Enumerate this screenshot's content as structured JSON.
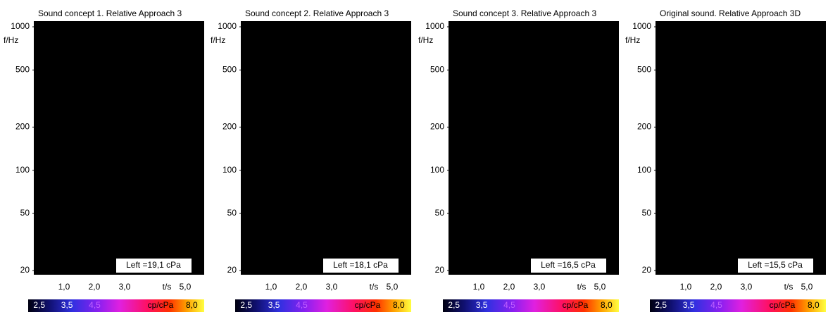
{
  "chart_data": [
    {
      "type": "spectrogram",
      "title": "Sound concept 1. Relative Approach 3",
      "ylabel": "f/Hz",
      "xlabel": "t/s",
      "log_y": true,
      "ylim": [
        18.7,
        1095
      ],
      "yticks": [
        20,
        50,
        100,
        200,
        500,
        1000
      ],
      "xlim": [
        0,
        5.63
      ],
      "xticks": [
        {
          "value": 1,
          "label": "1,0"
        },
        {
          "value": 2,
          "label": "2,0"
        },
        {
          "value": 3,
          "label": "3,0"
        },
        {
          "value": 5,
          "label": "5,0"
        }
      ],
      "annotation": "Left =19,1 cPa",
      "colorbar_label": "cp/cPa",
      "clim": [
        2.1,
        8.45
      ],
      "cticks": [
        {
          "value": 2.5,
          "label": "2,5"
        },
        {
          "value": 3.5,
          "label": "3,5"
        },
        {
          "value": 4.5,
          "label": "4,5"
        },
        {
          "value": 8,
          "label": "8,0"
        }
      ]
    },
    {
      "type": "spectrogram",
      "title": "Sound concept 2. Relative Approach 3",
      "ylabel": "f/Hz",
      "xlabel": "t/s",
      "log_y": true,
      "ylim": [
        18.7,
        1095
      ],
      "yticks": [
        20,
        50,
        100,
        200,
        500,
        1000
      ],
      "xlim": [
        0,
        5.63
      ],
      "xticks": [
        {
          "value": 1,
          "label": "1,0"
        },
        {
          "value": 2,
          "label": "2,0"
        },
        {
          "value": 3,
          "label": "3,0"
        },
        {
          "value": 5,
          "label": "5,0"
        }
      ],
      "annotation": "Left =18,1 cPa",
      "colorbar_label": "cp/cPa",
      "clim": [
        2.1,
        8.45
      ],
      "cticks": [
        {
          "value": 2.5,
          "label": "2,5"
        },
        {
          "value": 3.5,
          "label": "3,5"
        },
        {
          "value": 4.5,
          "label": "4,5"
        },
        {
          "value": 8,
          "label": "8,0"
        }
      ]
    },
    {
      "type": "spectrogram",
      "title": "Sound concept 3. Relative Approach 3",
      "ylabel": "f/Hz",
      "xlabel": "t/s",
      "log_y": true,
      "ylim": [
        18.7,
        1095
      ],
      "yticks": [
        20,
        50,
        100,
        200,
        500,
        1000
      ],
      "xlim": [
        0,
        5.63
      ],
      "xticks": [
        {
          "value": 1,
          "label": "1,0"
        },
        {
          "value": 2,
          "label": "2,0"
        },
        {
          "value": 3,
          "label": "3,0"
        },
        {
          "value": 5,
          "label": "5,0"
        }
      ],
      "annotation": "Left =16,5 cPa",
      "colorbar_label": "cp/cPa",
      "clim": [
        2.1,
        8.45
      ],
      "cticks": [
        {
          "value": 2.5,
          "label": "2,5"
        },
        {
          "value": 3.5,
          "label": "3,5"
        },
        {
          "value": 4.5,
          "label": "4,5"
        },
        {
          "value": 8,
          "label": "8,0"
        }
      ]
    },
    {
      "type": "spectrogram",
      "title": "Original sound. Relative Approach 3D",
      "ylabel": "f/Hz",
      "xlabel": "t/s",
      "log_y": true,
      "ylim": [
        18.7,
        1095
      ],
      "yticks": [
        20,
        50,
        100,
        200,
        500,
        1000
      ],
      "xlim": [
        0,
        5.63
      ],
      "xticks": [
        {
          "value": 1,
          "label": "1,0"
        },
        {
          "value": 2,
          "label": "2,0"
        },
        {
          "value": 3,
          "label": "3,0"
        },
        {
          "value": 5,
          "label": "5,0"
        }
      ],
      "annotation": "Left =15,5 cPa",
      "colorbar_label": "cp/cPa",
      "clim": [
        2.1,
        8.45
      ],
      "cticks": [
        {
          "value": 2.5,
          "label": "2,5"
        },
        {
          "value": 3.5,
          "label": "3,5"
        },
        {
          "value": 4.5,
          "label": "4,5"
        },
        {
          "value": 8,
          "label": "8,0"
        }
      ]
    }
  ]
}
